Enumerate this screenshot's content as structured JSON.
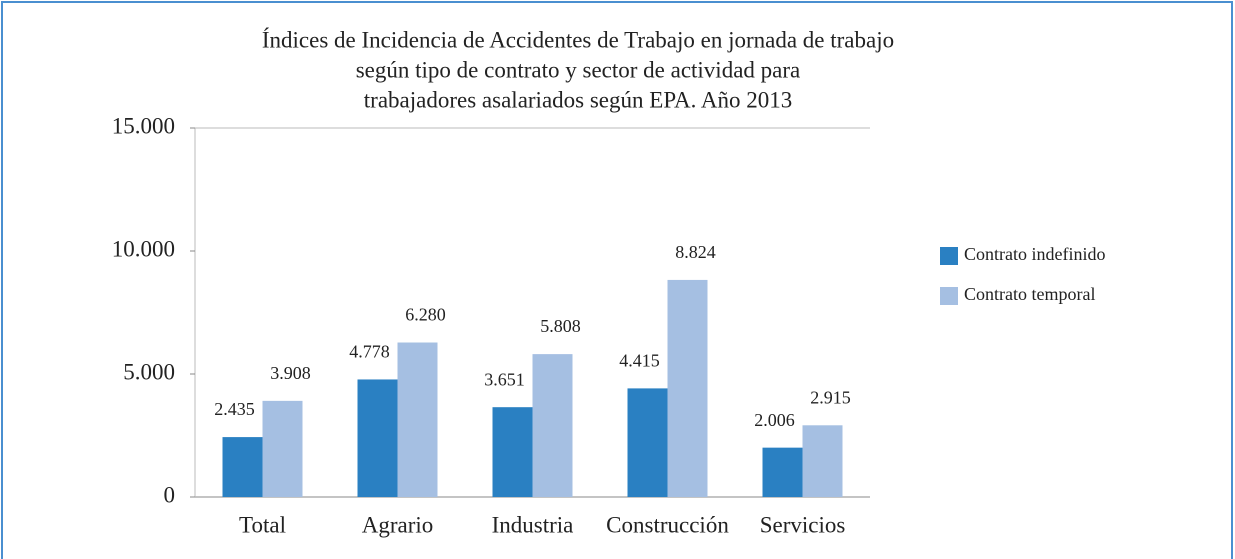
{
  "chart_data": {
    "type": "bar",
    "title": [
      "Índices de Incidencia de Accidentes de Trabajo en jornada de trabajo",
      "según tipo de contrato y sector de actividad para",
      "trabajadores asalariados según EPA. Año 2013"
    ],
    "categories": [
      "Total",
      "Agrario",
      "Industria",
      "Construcción",
      "Servicios"
    ],
    "series": [
      {
        "name": "Contrato indefinido",
        "color": "#2a80c2",
        "values": [
          2435,
          4778,
          3651,
          4415,
          2006
        ],
        "value_labels": [
          "2.435",
          "4.778",
          "3.651",
          "4.415",
          "2.006"
        ]
      },
      {
        "name": "Contrato temporal",
        "color": "#a5bfe2",
        "values": [
          3908,
          6280,
          5808,
          8824,
          2915
        ],
        "value_labels": [
          "3.908",
          "6.280",
          "5.808",
          "8.824",
          "2.915"
        ]
      }
    ],
    "ylim": [
      0,
      15000
    ],
    "yticks": [
      0,
      {
        "value": 5000,
        "label": "5.000"
      },
      {
        "value": 10000,
        "label": "10.000"
      },
      {
        "value": 15000,
        "label": "15.000"
      }
    ],
    "grid": false,
    "legend": "right"
  }
}
